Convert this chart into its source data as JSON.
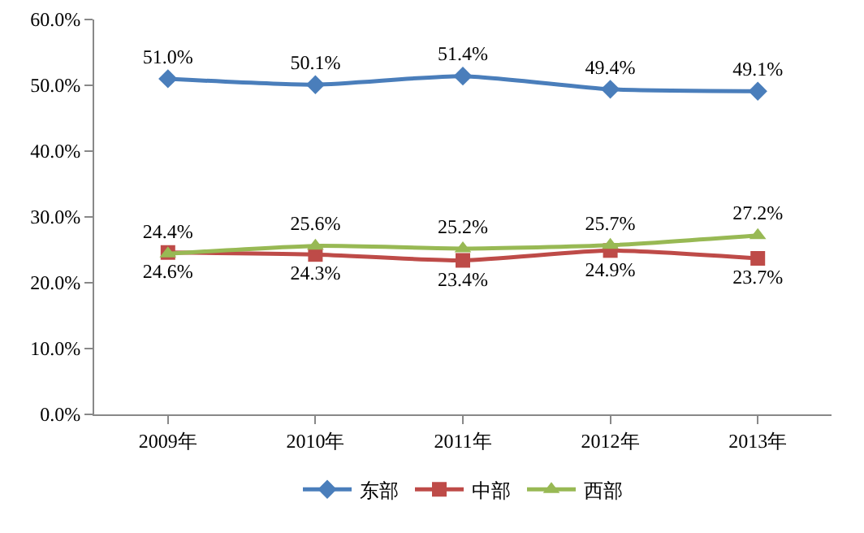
{
  "chart_data": {
    "type": "line",
    "categories": [
      "2009年",
      "2010年",
      "2011年",
      "2012年",
      "2013年"
    ],
    "series": [
      {
        "name": "东部",
        "color": "#4a7ebb",
        "marker": "diamond",
        "values": [
          51.0,
          50.1,
          51.4,
          49.4,
          49.1
        ],
        "value_labels": [
          "51.0%",
          "50.1%",
          "51.4%",
          "49.4%",
          "49.1%"
        ]
      },
      {
        "name": "中部",
        "color": "#be4b48",
        "marker": "square",
        "values": [
          24.6,
          24.3,
          23.4,
          24.9,
          23.7
        ],
        "value_labels": [
          "24.6%",
          "24.3%",
          "23.4%",
          "24.9%",
          "23.7%"
        ]
      },
      {
        "name": "西部",
        "color": "#98b954",
        "marker": "triangle",
        "values": [
          24.4,
          25.6,
          25.2,
          25.7,
          27.2
        ],
        "value_labels": [
          "24.4%",
          "25.6%",
          "25.2%",
          "25.7%",
          "27.2%"
        ]
      }
    ],
    "ylim": [
      0,
      60
    ],
    "yticks": [
      {
        "value": 0,
        "label": "0.0%"
      },
      {
        "value": 10,
        "label": "10.0%"
      },
      {
        "value": 20,
        "label": "20.0%"
      },
      {
        "value": 30,
        "label": "30.0%"
      },
      {
        "value": 40,
        "label": "40.0%"
      },
      {
        "value": 50,
        "label": "50.0%"
      },
      {
        "value": 60,
        "label": "60.0%"
      }
    ],
    "grid": false,
    "legend": "bottom",
    "line_style": "solid"
  }
}
